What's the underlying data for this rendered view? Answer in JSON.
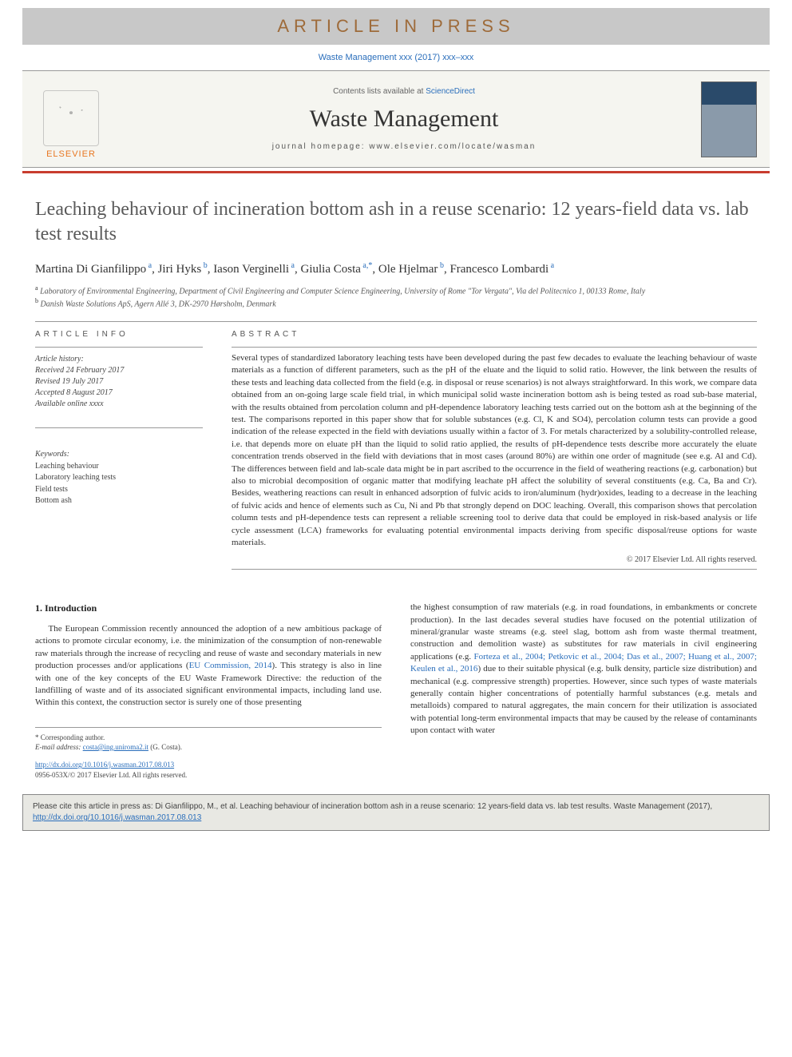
{
  "banner": {
    "text": "ARTICLE IN PRESS"
  },
  "journal_ref": "Waste Management xxx (2017) xxx–xxx",
  "header": {
    "contents_prefix": "Contents lists available at ",
    "contents_link": "ScienceDirect",
    "journal_title": "Waste Management",
    "homepage_prefix": "journal homepage: ",
    "homepage_url": "www.elsevier.com/locate/wasman",
    "publisher": "ELSEVIER"
  },
  "colors": {
    "rule": "#c83c2e",
    "link": "#2a6ebb",
    "banner_bg": "#c8c8c8",
    "banner_text": "#9e6b3a"
  },
  "article": {
    "title": "Leaching behaviour of incineration bottom ash in a reuse scenario: 12 years-field data vs. lab test results",
    "authors_html": "Martina Di Gianfilippo<span class='sup'> a</span>, Jiri Hyks<span class='sup'> b</span>, Iason Verginelli<span class='sup'> a</span>, Giulia Costa<span class='sup'> a,*</span>, Ole Hjelmar<span class='sup'> b</span>, Francesco Lombardi<span class='sup'> a</span>",
    "affiliations": {
      "a": "Laboratory of Environmental Engineering, Department of Civil Engineering and Computer Science Engineering, University of Rome \"Tor Vergata\", Via del Politecnico 1, 00133 Rome, Italy",
      "b": "Danish Waste Solutions ApS, Agern Allé 3, DK-2970 Hørsholm, Denmark"
    }
  },
  "info": {
    "label": "article info",
    "history_label": "Article history:",
    "received": "Received 24 February 2017",
    "revised": "Revised 19 July 2017",
    "accepted": "Accepted 8 August 2017",
    "online": "Available online xxxx",
    "keywords_label": "Keywords:",
    "keywords": [
      "Leaching behaviour",
      "Laboratory leaching tests",
      "Field tests",
      "Bottom ash"
    ]
  },
  "abstract": {
    "label": "abstract",
    "text": "Several types of standardized laboratory leaching tests have been developed during the past few decades to evaluate the leaching behaviour of waste materials as a function of different parameters, such as the pH of the eluate and the liquid to solid ratio. However, the link between the results of these tests and leaching data collected from the field (e.g. in disposal or reuse scenarios) is not always straightforward. In this work, we compare data obtained from an on-going large scale field trial, in which municipal solid waste incineration bottom ash is being tested as road sub-base material, with the results obtained from percolation column and pH-dependence laboratory leaching tests carried out on the bottom ash at the beginning of the test. The comparisons reported in this paper show that for soluble substances (e.g. Cl, K and SO4), percolation column tests can provide a good indication of the release expected in the field with deviations usually within a factor of 3. For metals characterized by a solubility-controlled release, i.e. that depends more on eluate pH than the liquid to solid ratio applied, the results of pH-dependence tests describe more accurately the eluate concentration trends observed in the field with deviations that in most cases (around 80%) are within one order of magnitude (see e.g. Al and Cd). The differences between field and lab-scale data might be in part ascribed to the occurrence in the field of weathering reactions (e.g. carbonation) but also to microbial decomposition of organic matter that modifying leachate pH affect the solubility of several constituents (e.g. Ca, Ba and Cr). Besides, weathering reactions can result in enhanced adsorption of fulvic acids to iron/aluminum (hydr)oxides, leading to a decrease in the leaching of fulvic acids and hence of elements such as Cu, Ni and Pb that strongly depend on DOC leaching. Overall, this comparison shows that percolation column tests and pH-dependence tests can represent a reliable screening tool to derive data that could be employed in risk-based analysis or life cycle assessment (LCA) frameworks for evaluating potential environmental impacts deriving from specific disposal/reuse options for waste materials.",
    "copyright": "© 2017 Elsevier Ltd. All rights reserved."
  },
  "body": {
    "section_heading": "1. Introduction",
    "col1": "The European Commission recently announced the adoption of a new ambitious package of actions to promote circular economy, i.e. the minimization of the consumption of non-renewable raw materials through the increase of recycling and reuse of waste and secondary materials in new production processes and/or applications (EU Commission, 2014). This strategy is also in line with one of the key concepts of the EU Waste Framework Directive: the reduction of the landfilling of waste and of its associated significant environmental impacts, including land use. Within this context, the construction sector is surely one of those presenting",
    "col2": "the highest consumption of raw materials (e.g. in road foundations, in embankments or concrete production). In the last decades several studies have focused on the potential utilization of mineral/granular waste streams (e.g. steel slag, bottom ash from waste thermal treatment, construction and demolition waste) as substitutes for raw materials in civil engineering applications (e.g. Forteza et al., 2004; Petkovic et al., 2004; Das et al., 2007; Huang et al., 2007; Keulen et al., 2016) due to their suitable physical (e.g. bulk density, particle size distribution) and mechanical (e.g. compressive strength) properties. However, since such types of waste materials generally contain higher concentrations of potentially harmful substances (e.g. metals and metalloids) compared to natural aggregates, the main concern for their utilization is associated with potential long-term environmental impacts that may be caused by the release of contaminants upon contact with water",
    "col1_link_text": "EU Commission, 2014",
    "col2_link_text": "Forteza et al., 2004; Petkovic et al., 2004; Das et al., 2007; Huang et al., 2007; Keulen et al., 2016"
  },
  "footnotes": {
    "corresponding": "* Corresponding author.",
    "email_label": "E-mail address:",
    "email": "costa@ing.uniroma2.it",
    "email_name": "(G. Costa)."
  },
  "doi": {
    "url": "http://dx.doi.org/10.1016/j.wasman.2017.08.013",
    "issn_line": "0956-053X/© 2017 Elsevier Ltd. All rights reserved."
  },
  "citebox": {
    "text_prefix": "Please cite this article in press as: Di Gianfilippo, M., et al. Leaching behaviour of incineration bottom ash in a reuse scenario: 12 years-field data vs. lab test results. Waste Management (2017), ",
    "link": "http://dx.doi.org/10.1016/j.wasman.2017.08.013"
  }
}
